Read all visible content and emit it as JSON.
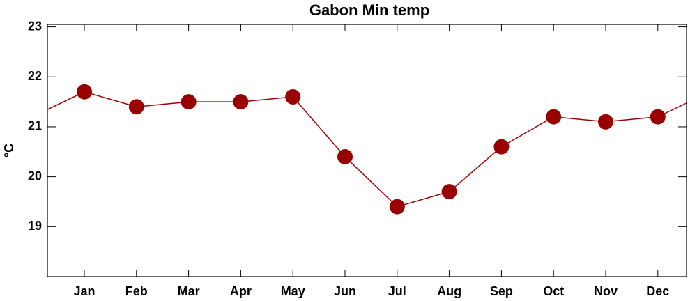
{
  "chart_data": {
    "type": "line",
    "title": "Gabon Min temp",
    "ylabel": "°C",
    "categories": [
      "Jan",
      "Feb",
      "Mar",
      "Apr",
      "May",
      "Jun",
      "Jul",
      "Aug",
      "Sep",
      "Oct",
      "Nov",
      "Dec"
    ],
    "series": [
      {
        "name": "Min temp",
        "color": "#990000",
        "values": [
          21.7,
          21.4,
          21.5,
          21.5,
          21.6,
          20.4,
          19.4,
          19.7,
          20.6,
          21.2,
          21.1,
          21.2
        ]
      }
    ],
    "ylim": [
      18,
      23.05
    ],
    "yticks": [
      19,
      20,
      21,
      22,
      23
    ],
    "cyclic": true
  }
}
